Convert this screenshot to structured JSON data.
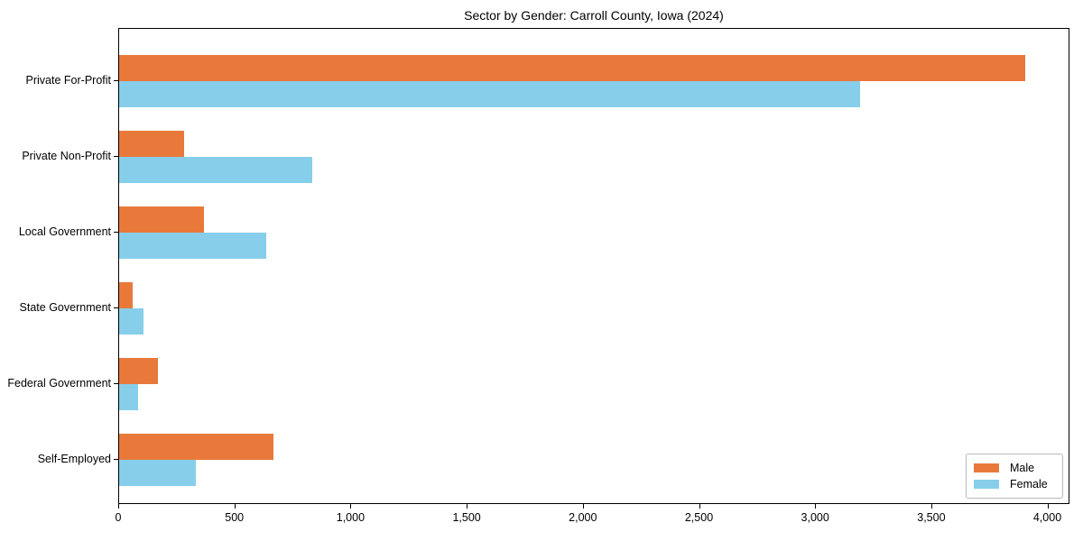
{
  "title": "Sector by Gender: Carroll County, Iowa (2024)",
  "chart_data": {
    "type": "bar",
    "orientation": "horizontal",
    "title": "Sector by Gender: Carroll County, Iowa (2024)",
    "categories": [
      "Private For-Profit",
      "Private Non-Profit",
      "Local Government",
      "State Government",
      "Federal Government",
      "Self-Employed"
    ],
    "series": [
      {
        "name": "Male",
        "color": "#e8793b",
        "values": [
          3900,
          280,
          365,
          60,
          165,
          665
        ]
      },
      {
        "name": "Female",
        "color": "#87ceeb",
        "values": [
          3190,
          830,
          635,
          105,
          80,
          330
        ]
      }
    ],
    "xlabel": "",
    "ylabel": "",
    "xlim": [
      0,
      4095
    ],
    "xticks": [
      0,
      500,
      1000,
      1500,
      2000,
      2500,
      3000,
      3500,
      4000
    ],
    "xtick_labels": [
      "0",
      "500",
      "1,000",
      "1,500",
      "2,000",
      "2,500",
      "3,000",
      "3,500",
      "4,000"
    ],
    "grid": false,
    "legend": {
      "position": "lower right",
      "entries": [
        "Male",
        "Female"
      ]
    }
  },
  "colors": {
    "male": "#e8793b",
    "female": "#87ceeb",
    "axis": "#000000",
    "legend_border": "#b8b8b8",
    "background": "#ffffff"
  }
}
